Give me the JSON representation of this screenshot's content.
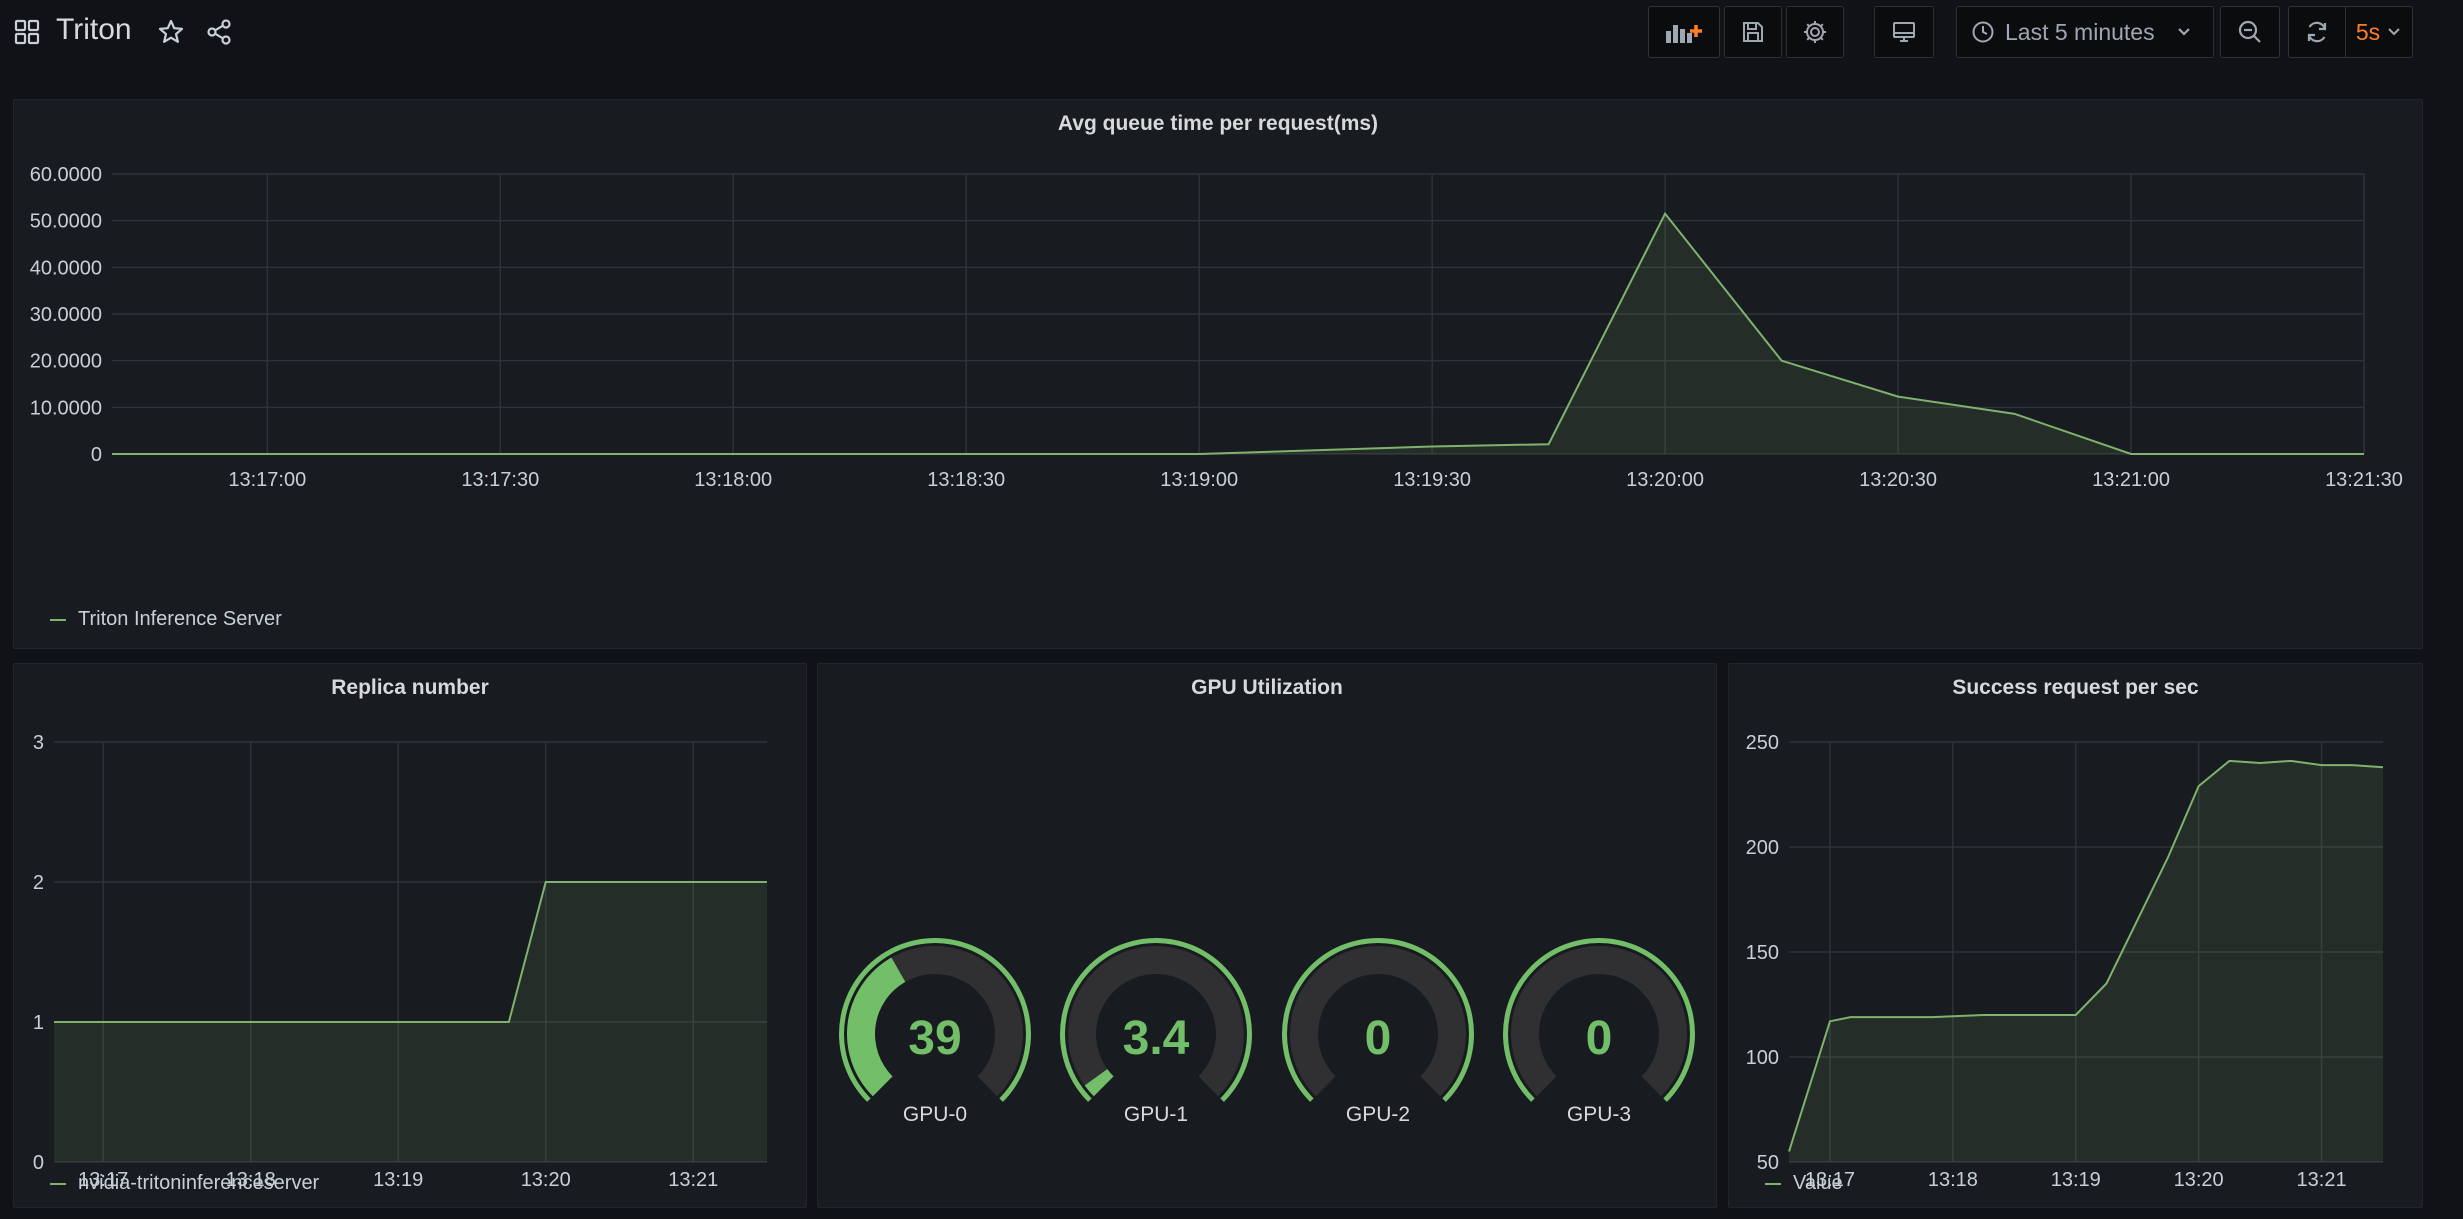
{
  "header": {
    "title": "Triton",
    "time_range": "Last 5 minutes",
    "refresh_interval": "5s"
  },
  "colors": {
    "background": "#111217",
    "panel": "#181b1f",
    "series": "#7eb26d",
    "gauge": "#73bf69",
    "refresh_accent": "#ff7f27"
  },
  "icons": [
    "apps-icon",
    "star-icon",
    "share-icon",
    "add-panel-icon",
    "save-icon",
    "settings-icon",
    "tv-mode-icon",
    "clock-icon",
    "chevron-down-icon",
    "zoom-out-icon",
    "refresh-icon"
  ],
  "panels": {
    "queue": {
      "title": "Avg queue time per request(ms)",
      "legend": "Triton Inference Server"
    },
    "replica": {
      "title": "Replica number",
      "legend": "nvidia-tritoninferenceserver"
    },
    "gpu": {
      "title": "GPU Utilization"
    },
    "success": {
      "title": "Success request per sec",
      "legend": "Value"
    }
  },
  "chart_data": [
    {
      "id": "queue",
      "type": "area",
      "title": "Avg queue time per request(ms)",
      "x": [
        "13:16:40",
        "13:17:00",
        "13:17:30",
        "13:18:00",
        "13:18:30",
        "13:19:00",
        "13:19:15",
        "13:19:30",
        "13:19:45",
        "13:20:00",
        "13:20:15",
        "13:20:30",
        "13:20:45",
        "13:21:00",
        "13:21:30"
      ],
      "series": [
        {
          "name": "Triton Inference Server",
          "values": [
            0,
            0,
            0,
            0,
            0,
            0,
            0.8,
            1.6,
            2.1,
            51.5,
            20,
            12.3,
            8.6,
            0,
            0
          ]
        }
      ],
      "xticks": [
        "13:17:00",
        "13:17:30",
        "13:18:00",
        "13:18:30",
        "13:19:00",
        "13:19:30",
        "13:20:00",
        "13:20:30",
        "13:21:00",
        "13:21:30"
      ],
      "yticks": [
        "0",
        "10.0000",
        "20.0000",
        "30.0000",
        "40.0000",
        "50.0000",
        "60.0000"
      ],
      "ylim": [
        0,
        60
      ],
      "grid": true,
      "legend": "bottom-left"
    },
    {
      "id": "replica",
      "type": "area",
      "title": "Replica number",
      "x": [
        "13:16:40",
        "13:19:45",
        "13:20:00",
        "13:21:30"
      ],
      "series": [
        {
          "name": "nvidia-tritoninferenceserver",
          "values": [
            1,
            1,
            2,
            2
          ]
        }
      ],
      "xticks": [
        "13:17",
        "13:18",
        "13:19",
        "13:20",
        "13:21"
      ],
      "yticks": [
        "0",
        "1",
        "2",
        "3"
      ],
      "ylim": [
        0,
        3
      ],
      "grid": true,
      "legend": "bottom-left"
    },
    {
      "id": "success",
      "type": "area",
      "title": "Success request per sec",
      "x": [
        "13:16:40",
        "13:17:00",
        "13:17:10",
        "13:17:30",
        "13:17:50",
        "13:18:15",
        "13:18:30",
        "13:19:00",
        "13:19:15",
        "13:19:45",
        "13:20:00",
        "13:20:15",
        "13:20:30",
        "13:20:45",
        "13:21:00",
        "13:21:15",
        "13:21:30"
      ],
      "series": [
        {
          "name": "Value",
          "values": [
            55,
            117,
            119,
            119,
            119,
            120,
            120,
            120,
            135,
            195,
            229,
            241,
            240,
            241,
            239,
            239,
            238
          ]
        }
      ],
      "xticks": [
        "13:17",
        "13:18",
        "13:19",
        "13:20",
        "13:21"
      ],
      "yticks": [
        "50",
        "100",
        "150",
        "200",
        "250"
      ],
      "ylim": [
        50,
        250
      ],
      "grid": true,
      "legend": "bottom-left"
    },
    {
      "id": "gpu",
      "type": "gauge",
      "title": "GPU Utilization",
      "min": 0,
      "max": 100,
      "gauges": [
        {
          "name": "GPU-0",
          "value": 39,
          "display": "39"
        },
        {
          "name": "GPU-1",
          "value": 3.4,
          "display": "3.4"
        },
        {
          "name": "GPU-2",
          "value": 0,
          "display": "0"
        },
        {
          "name": "GPU-3",
          "value": 0,
          "display": "0"
        }
      ]
    }
  ]
}
